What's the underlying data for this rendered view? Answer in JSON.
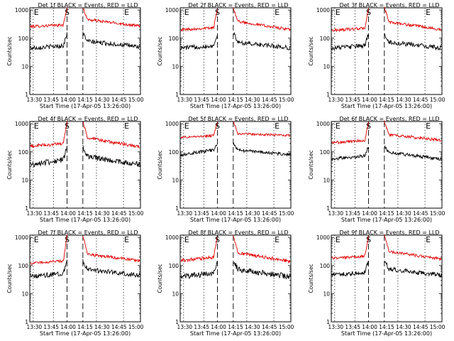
{
  "figure": {
    "background": "#ffffff",
    "colors": {
      "events": "#000000",
      "lld": "#e00000",
      "axes": "#000000"
    }
  },
  "chart_data": [
    {
      "type": "line",
      "title": "Det 1f BLACK = Events, RED = LLD",
      "xlabel": "Start Time (17-Apr-05 13:26:00)",
      "ylabel": "Counts/sec",
      "yscale": "log",
      "ylim": [
        1,
        1200
      ],
      "xlim": [
        "13:26",
        "15:04"
      ],
      "x_ticks": [
        "13:30",
        "13:45",
        "14:00",
        "14:15",
        "14:30",
        "14:45",
        "15:00"
      ],
      "y_ticks": [
        "1",
        "10",
        "100",
        "1000"
      ],
      "markers": [
        {
          "time": "13:29",
          "label": "E",
          "style": "dotted"
        },
        {
          "time": "13:47",
          "label": "",
          "style": "dotted"
        },
        {
          "time": "13:59",
          "label": "S",
          "style": "dashed"
        },
        {
          "time": "14:13",
          "label": "",
          "style": "dashed"
        },
        {
          "time": "14:25",
          "label": "",
          "style": "dotted"
        },
        {
          "time": "14:49",
          "label": "E",
          "style": "dotted"
        }
      ],
      "gap": [
        "13:59",
        "14:13"
      ],
      "series": [
        {
          "name": "LLD",
          "color": "#e00000",
          "pre_start": 260,
          "pre_end": 300,
          "post_start": 480,
          "post_end": 270,
          "peak": 1200,
          "noise": 0.05
        },
        {
          "name": "Events",
          "color": "#000000",
          "pre_start": 45,
          "pre_end": 55,
          "post_start": 80,
          "post_end": 50,
          "peak": 150,
          "noise": 0.08
        }
      ]
    },
    {
      "type": "line",
      "title": "Det 2f BLACK = Events, RED = LLD",
      "xlabel": "Start Time (17-Apr-05 13:26:00)",
      "ylabel": "Counts/sec",
      "yscale": "log",
      "ylim": [
        1,
        1200
      ],
      "xlim": [
        "13:26",
        "15:04"
      ],
      "x_ticks": [
        "13:30",
        "13:45",
        "14:00",
        "14:15",
        "14:30",
        "14:45",
        "15:00"
      ],
      "y_ticks": [
        "1",
        "10",
        "100",
        "1000"
      ],
      "markers": [
        {
          "time": "13:29",
          "label": "E",
          "style": "dotted"
        },
        {
          "time": "13:47",
          "label": "",
          "style": "dotted"
        },
        {
          "time": "13:59",
          "label": "S",
          "style": "dashed"
        },
        {
          "time": "14:13",
          "label": "",
          "style": "dashed"
        },
        {
          "time": "14:25",
          "label": "",
          "style": "dotted"
        },
        {
          "time": "14:49",
          "label": "E",
          "style": "dotted"
        }
      ],
      "gap": [
        "13:59",
        "14:13"
      ],
      "series": [
        {
          "name": "LLD",
          "color": "#e00000",
          "pre_start": 200,
          "pre_end": 240,
          "post_start": 420,
          "post_end": 200,
          "peak": 1200,
          "noise": 0.05
        },
        {
          "name": "Events",
          "color": "#000000",
          "pre_start": 45,
          "pre_end": 55,
          "post_start": 75,
          "post_end": 45,
          "peak": 150,
          "noise": 0.08
        }
      ]
    },
    {
      "type": "line",
      "title": "Det 3f BLACK = Events, RED = LLD",
      "xlabel": "Start Time (17-Apr-05 13:26:00)",
      "ylabel": "Counts/sec",
      "yscale": "log",
      "ylim": [
        1,
        1200
      ],
      "xlim": [
        "13:26",
        "15:04"
      ],
      "x_ticks": [
        "13:30",
        "13:45",
        "14:00",
        "14:15",
        "14:30",
        "14:45",
        "15:00"
      ],
      "y_ticks": [
        "1",
        "10",
        "100",
        "1000"
      ],
      "markers": [
        {
          "time": "13:29",
          "label": "E",
          "style": "dotted"
        },
        {
          "time": "13:47",
          "label": "",
          "style": "dotted"
        },
        {
          "time": "13:59",
          "label": "S",
          "style": "dashed"
        },
        {
          "time": "14:13",
          "label": "",
          "style": "dashed"
        },
        {
          "time": "14:25",
          "label": "",
          "style": "dotted"
        },
        {
          "time": "14:49",
          "label": "E",
          "style": "dotted"
        }
      ],
      "gap": [
        "13:59",
        "14:13"
      ],
      "series": [
        {
          "name": "LLD",
          "color": "#e00000",
          "pre_start": 190,
          "pre_end": 230,
          "post_start": 400,
          "post_end": 200,
          "peak": 1200,
          "noise": 0.05
        },
        {
          "name": "Events",
          "color": "#000000",
          "pre_start": 45,
          "pre_end": 55,
          "post_start": 75,
          "post_end": 45,
          "peak": 150,
          "noise": 0.08
        }
      ]
    },
    {
      "type": "line",
      "title": "Det 4f BLACK = Events, RED = LLD",
      "xlabel": "Start Time (17-Apr-05 13:26:00)",
      "ylabel": "Counts/sec",
      "yscale": "log",
      "ylim": [
        1,
        1200
      ],
      "xlim": [
        "13:26",
        "15:04"
      ],
      "x_ticks": [
        "13:30",
        "13:45",
        "14:00",
        "14:15",
        "14:30",
        "14:45",
        "15:00"
      ],
      "y_ticks": [
        "1",
        "10",
        "100",
        "1000"
      ],
      "markers": [
        {
          "time": "13:29",
          "label": "E",
          "style": "dotted"
        },
        {
          "time": "13:47",
          "label": "",
          "style": "dotted"
        },
        {
          "time": "13:59",
          "label": "S",
          "style": "dashed"
        },
        {
          "time": "14:13",
          "label": "",
          "style": "dashed"
        },
        {
          "time": "14:25",
          "label": "",
          "style": "dotted"
        },
        {
          "time": "14:49",
          "label": "E",
          "style": "dotted"
        }
      ],
      "gap": [
        "13:59",
        "14:13"
      ],
      "series": [
        {
          "name": "LLD",
          "color": "#e00000",
          "pre_start": 160,
          "pre_end": 200,
          "post_start": 330,
          "post_end": 150,
          "peak": 1200,
          "noise": 0.06
        },
        {
          "name": "Events",
          "color": "#000000",
          "pre_start": 35,
          "pre_end": 55,
          "post_start": 70,
          "post_end": 35,
          "peak": 150,
          "noise": 0.1
        }
      ]
    },
    {
      "type": "line",
      "title": "Det 5f BLACK = Events, RED = LLD",
      "xlabel": "Start Time (17-Apr-05 13:26:00)",
      "ylabel": "Counts/sec",
      "yscale": "log",
      "ylim": [
        1,
        1200
      ],
      "xlim": [
        "13:26",
        "15:04"
      ],
      "x_ticks": [
        "13:30",
        "13:45",
        "14:00",
        "14:15",
        "14:30",
        "14:45",
        "15:00"
      ],
      "y_ticks": [
        "1",
        "10",
        "100",
        "1000"
      ],
      "markers": [
        {
          "time": "13:29",
          "label": "E",
          "style": "dotted"
        },
        {
          "time": "13:47",
          "label": "",
          "style": "dotted"
        },
        {
          "time": "13:59",
          "label": "S",
          "style": "dashed"
        },
        {
          "time": "14:13",
          "label": "",
          "style": "dashed"
        },
        {
          "time": "14:25",
          "label": "",
          "style": "dotted"
        },
        {
          "time": "14:49",
          "label": "E",
          "style": "dotted"
        }
      ],
      "gap": [
        "13:59",
        "14:13"
      ],
      "series": [
        {
          "name": "LLD",
          "color": "#e00000",
          "pre_start": 330,
          "pre_end": 380,
          "post_start": 450,
          "post_end": 380,
          "peak": 1200,
          "noise": 0.04
        },
        {
          "name": "Events",
          "color": "#000000",
          "pre_start": 80,
          "pre_end": 120,
          "post_start": 120,
          "post_end": 80,
          "peak": 200,
          "noise": 0.06
        }
      ]
    },
    {
      "type": "line",
      "title": "Det 6f BLACK = Events, RED = LLD",
      "xlabel": "Start Time (17-Apr-05 13:26:00)",
      "ylabel": "Counts/sec",
      "yscale": "log",
      "ylim": [
        1,
        1200
      ],
      "xlim": [
        "13:26",
        "15:04"
      ],
      "x_ticks": [
        "13:30",
        "13:45",
        "14:00",
        "14:15",
        "14:30",
        "14:45",
        "15:00"
      ],
      "y_ticks": [
        "1",
        "10",
        "100",
        "1000"
      ],
      "markers": [
        {
          "time": "13:29",
          "label": "E",
          "style": "dotted"
        },
        {
          "time": "13:47",
          "label": "",
          "style": "dotted"
        },
        {
          "time": "13:59",
          "label": "S",
          "style": "dashed"
        },
        {
          "time": "14:13",
          "label": "",
          "style": "dashed"
        },
        {
          "time": "14:25",
          "label": "",
          "style": "dotted"
        },
        {
          "time": "14:49",
          "label": "E",
          "style": "dotted"
        }
      ],
      "gap": [
        "13:59",
        "14:13"
      ],
      "series": [
        {
          "name": "LLD",
          "color": "#e00000",
          "pre_start": 210,
          "pre_end": 260,
          "post_start": 420,
          "post_end": 260,
          "peak": 1200,
          "noise": 0.05
        },
        {
          "name": "Events",
          "color": "#000000",
          "pre_start": 55,
          "pre_end": 75,
          "post_start": 100,
          "post_end": 55,
          "peak": 150,
          "noise": 0.06
        }
      ]
    },
    {
      "type": "line",
      "title": "Det 7f BLACK = Events, RED = LLD",
      "xlabel": "Start Time (17-Apr-05 13:26:00)",
      "ylabel": "Counts/sec",
      "yscale": "log",
      "ylim": [
        1,
        1200
      ],
      "xlim": [
        "13:26",
        "15:04"
      ],
      "x_ticks": [
        "13:30",
        "13:45",
        "14:00",
        "14:15",
        "14:30",
        "14:45",
        "15:00"
      ],
      "y_ticks": [
        "1",
        "10",
        "100",
        "1000"
      ],
      "markers": [
        {
          "time": "13:29",
          "label": "E",
          "style": "dotted"
        },
        {
          "time": "13:47",
          "label": "",
          "style": "dotted"
        },
        {
          "time": "13:59",
          "label": "S",
          "style": "dashed"
        },
        {
          "time": "14:13",
          "label": "",
          "style": "dashed"
        },
        {
          "time": "14:25",
          "label": "",
          "style": "dotted"
        },
        {
          "time": "14:49",
          "label": "E",
          "style": "dotted"
        }
      ],
      "gap": [
        "13:59",
        "14:13"
      ],
      "series": [
        {
          "name": "LLD",
          "color": "#e00000",
          "pre_start": 120,
          "pre_end": 150,
          "post_start": 260,
          "post_end": 150,
          "peak": 1200,
          "noise": 0.05
        },
        {
          "name": "Events",
          "color": "#000000",
          "pre_start": 40,
          "pre_end": 55,
          "post_start": 75,
          "post_end": 45,
          "peak": 150,
          "noise": 0.08
        }
      ]
    },
    {
      "type": "line",
      "title": "Det 8f BLACK = Events, RED = LLD",
      "xlabel": "Start Time (17-Apr-05 13:26:00)",
      "ylabel": "Counts/sec",
      "yscale": "log",
      "ylim": [
        1,
        1200
      ],
      "xlim": [
        "13:26",
        "15:04"
      ],
      "x_ticks": [
        "13:30",
        "13:45",
        "14:00",
        "14:15",
        "14:30",
        "14:45",
        "15:00"
      ],
      "y_ticks": [
        "1",
        "10",
        "100",
        "1000"
      ],
      "markers": [
        {
          "time": "13:29",
          "label": "E",
          "style": "dotted"
        },
        {
          "time": "13:47",
          "label": "",
          "style": "dotted"
        },
        {
          "time": "13:59",
          "label": "S",
          "style": "dashed"
        },
        {
          "time": "14:13",
          "label": "",
          "style": "dashed"
        },
        {
          "time": "14:25",
          "label": "",
          "style": "dotted"
        },
        {
          "time": "14:49",
          "label": "E",
          "style": "dotted"
        }
      ],
      "gap": [
        "13:59",
        "14:13"
      ],
      "series": [
        {
          "name": "LLD",
          "color": "#e00000",
          "pre_start": 150,
          "pre_end": 200,
          "post_start": 300,
          "post_end": 140,
          "peak": 1200,
          "noise": 0.06
        },
        {
          "name": "Events",
          "color": "#000000",
          "pre_start": 40,
          "pre_end": 55,
          "post_start": 75,
          "post_end": 40,
          "peak": 150,
          "noise": 0.1
        }
      ]
    },
    {
      "type": "line",
      "title": "Det 9f BLACK = Events, RED = LLD",
      "xlabel": "Start Time (17-Apr-05 13:26:00)",
      "ylabel": "Counts/sec",
      "yscale": "log",
      "ylim": [
        1,
        1200
      ],
      "xlim": [
        "13:26",
        "15:04"
      ],
      "x_ticks": [
        "13:30",
        "13:45",
        "14:00",
        "14:15",
        "14:30",
        "14:45",
        "15:00"
      ],
      "y_ticks": [
        "1",
        "10",
        "100",
        "1000"
      ],
      "markers": [
        {
          "time": "13:29",
          "label": "E",
          "style": "dotted"
        },
        {
          "time": "13:47",
          "label": "",
          "style": "dotted"
        },
        {
          "time": "13:59",
          "label": "S",
          "style": "dashed"
        },
        {
          "time": "14:13",
          "label": "",
          "style": "dashed"
        },
        {
          "time": "14:25",
          "label": "",
          "style": "dotted"
        },
        {
          "time": "14:49",
          "label": "E",
          "style": "dotted"
        }
      ],
      "gap": [
        "13:59",
        "14:13"
      ],
      "series": [
        {
          "name": "LLD",
          "color": "#e00000",
          "pre_start": 180,
          "pre_end": 220,
          "post_start": 330,
          "post_end": 170,
          "peak": 1200,
          "noise": 0.05
        },
        {
          "name": "Events",
          "color": "#000000",
          "pre_start": 45,
          "pre_end": 60,
          "post_start": 80,
          "post_end": 45,
          "peak": 150,
          "noise": 0.08
        }
      ]
    }
  ]
}
